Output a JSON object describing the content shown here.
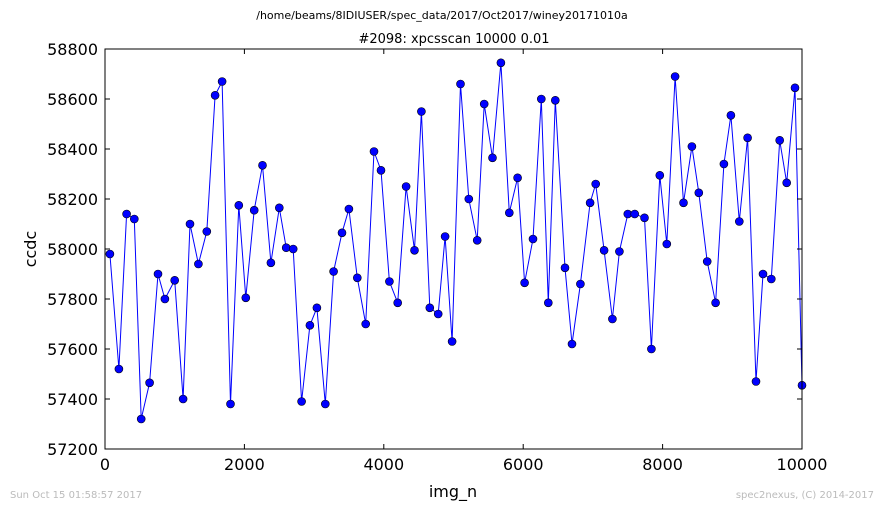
{
  "figure": {
    "suptitle": "/home/beams/8IDIUSER/spec_data/2017/Oct2017/winey20171010a",
    "footer_left": "Sun Oct 15 01:58:57 2017",
    "footer_right": "spec2nexus, (C) 2014-2017"
  },
  "chart_data": {
    "type": "line",
    "title": "#2098: xpcsscan 10000 0.01",
    "xlabel": "img_n",
    "ylabel": "ccdc",
    "xlim": [
      0,
      10000
    ],
    "ylim": [
      57200,
      58800
    ],
    "xticks": [
      0,
      2000,
      4000,
      6000,
      8000,
      10000
    ],
    "yticks": [
      57200,
      57400,
      57600,
      57800,
      58000,
      58200,
      58400,
      58600,
      58800
    ],
    "grid": false,
    "marker": "circle",
    "color": "#0000ff",
    "series": [
      {
        "x": [
          70,
          200,
          310,
          420,
          520,
          640,
          760,
          860,
          1000,
          1120,
          1220,
          1340,
          1460,
          1580,
          1680,
          1800,
          1920,
          2020,
          2140,
          2260,
          2380,
          2500,
          2600,
          2700,
          2820,
          2940,
          3040,
          3160,
          3280,
          3400,
          3500,
          3620,
          3740,
          3860,
          3960,
          4080,
          4200,
          4320,
          4440,
          4540,
          4660,
          4780,
          4880,
          4980,
          5100,
          5220,
          5340,
          5440,
          5560,
          5680,
          5800,
          5920,
          6020,
          6140,
          6260,
          6360,
          6460,
          6600,
          6700,
          6820,
          6960,
          7040,
          7160,
          7280,
          7380,
          7500,
          7600,
          7740,
          7840,
          7960,
          8060,
          8180,
          8300,
          8420,
          8520,
          8640,
          8760,
          8880,
          8980,
          9100,
          9220,
          9340,
          9440,
          9560,
          9680,
          9780,
          9900,
          10000
        ],
        "y": [
          57980,
          57520,
          58140,
          58120,
          57320,
          57465,
          57900,
          57800,
          57875,
          57400,
          58100,
          57940,
          58070,
          58615,
          58670,
          57380,
          58175,
          57805,
          58155,
          58335,
          57945,
          58165,
          58005,
          58000,
          57390,
          57695,
          57765,
          57380,
          57910,
          58065,
          58160,
          57885,
          57700,
          58390,
          58315,
          57870,
          57785,
          58250,
          57995,
          58550,
          57765,
          57740,
          58050,
          57630,
          58660,
          58200,
          58035,
          58580,
          58365,
          58745,
          58145,
          58285,
          57865,
          58040,
          58600,
          57785,
          58595,
          57925,
          57620,
          57860,
          58185,
          58260,
          57995,
          57720,
          57990,
          58140,
          58140,
          58125,
          57600,
          58295,
          58020,
          58690,
          58185,
          58410,
          58225,
          57950,
          57785,
          58340,
          58535,
          58110,
          58445,
          57470,
          57900,
          57880,
          58435,
          58265,
          58645,
          57455
        ]
      }
    ]
  }
}
